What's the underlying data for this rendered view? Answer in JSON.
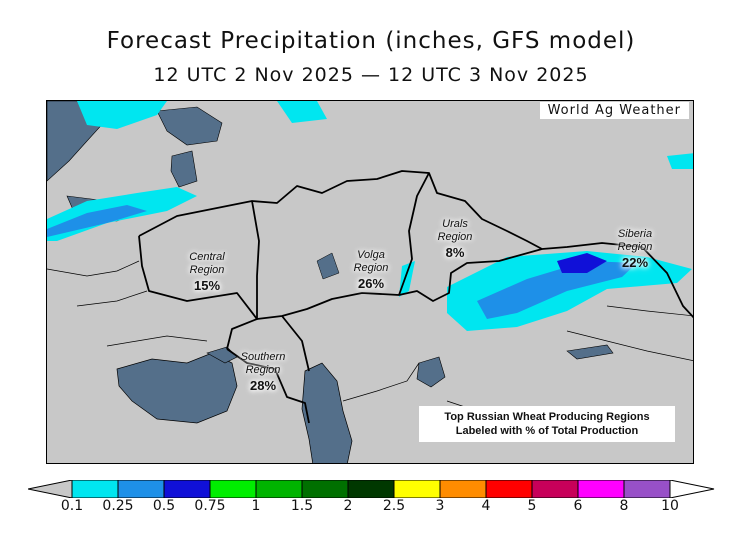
{
  "title": "Forecast Precipitation (inches, GFS model)",
  "subtitle": "12 UTC 2 Nov 2025 — 12 UTC 3 Nov 2025",
  "credit": "World Ag Weather",
  "regions": [
    {
      "name": "Central",
      "label": "Region",
      "pct": "15%"
    },
    {
      "name": "Volga",
      "label": "Region",
      "pct": "26%"
    },
    {
      "name": "Urals",
      "label": "Region",
      "pct": "8%"
    },
    {
      "name": "Siberia",
      "label": "Region",
      "pct": "22%"
    },
    {
      "name": "Southern",
      "label": "Region",
      "pct": "28%"
    }
  ],
  "note": {
    "line1": "Top Russian Wheat Producing Regions",
    "line2": "Labeled with % of Total Production"
  },
  "colors": {
    "land": "#c8c8c8",
    "water": "#546f8a",
    "border": "#000000"
  },
  "legend": {
    "ticks": [
      "0.1",
      "0.25",
      "0.5",
      "0.75",
      "1",
      "1.5",
      "2",
      "2.5",
      "3",
      "4",
      "5",
      "6",
      "8",
      "10"
    ],
    "colors": [
      "#00e6f0",
      "#1e90e8",
      "#1010d8",
      "#00ee00",
      "#00b400",
      "#007000",
      "#003800",
      "#ffff00",
      "#ff8c00",
      "#ff0000",
      "#c8005a",
      "#ff00ff",
      "#9850c8"
    ]
  }
}
